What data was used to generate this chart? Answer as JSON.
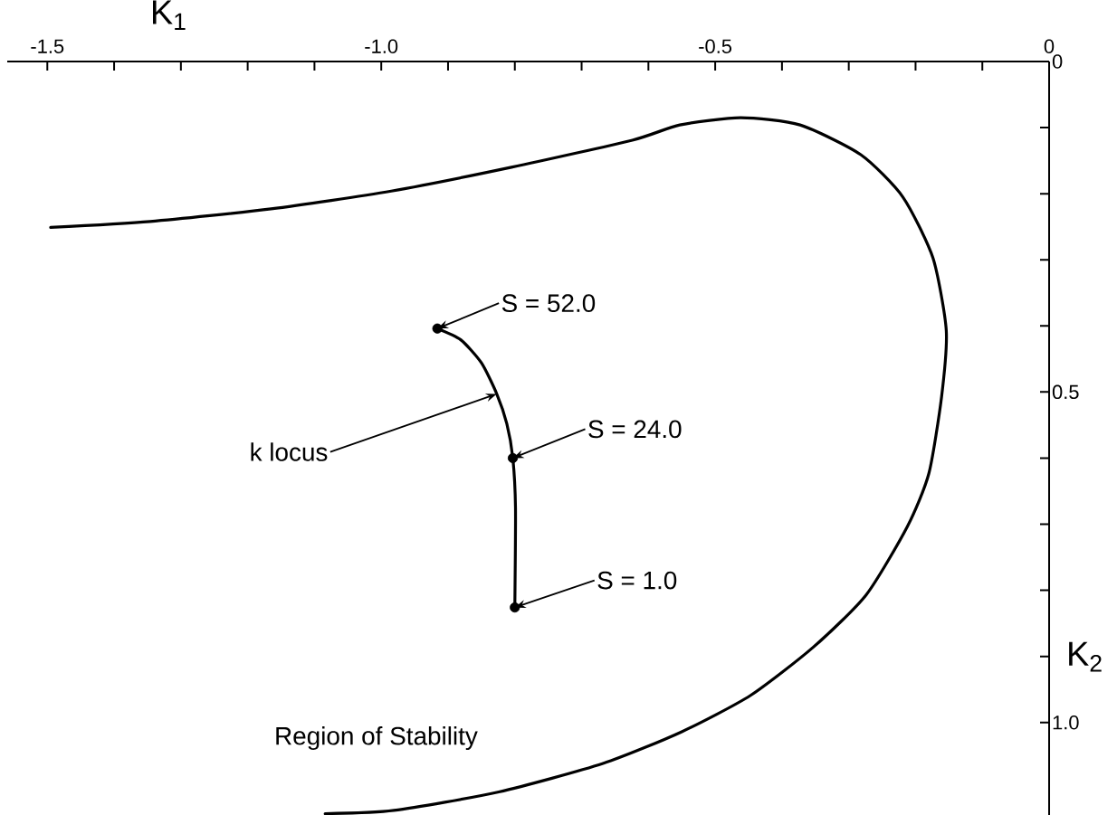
{
  "chart_data": {
    "type": "line",
    "xlabel": "K$_{1}$",
    "ylabel": "K$_{2}$",
    "xlim": [
      -1.56,
      0
    ],
    "ylim": [
      1.14,
      0
    ],
    "xticks": [
      {
        "value": -1.5,
        "label": "-1.5"
      },
      {
        "value": -1.4,
        "label": null
      },
      {
        "value": -1.3,
        "label": null
      },
      {
        "value": -1.2,
        "label": null
      },
      {
        "value": -1.1,
        "label": null
      },
      {
        "value": -1.0,
        "label": "-1.0"
      },
      {
        "value": -0.9,
        "label": null
      },
      {
        "value": -0.8,
        "label": null
      },
      {
        "value": -0.7,
        "label": null
      },
      {
        "value": -0.6,
        "label": null
      },
      {
        "value": -0.5,
        "label": "-0.5"
      },
      {
        "value": -0.4,
        "label": null
      },
      {
        "value": -0.3,
        "label": null
      },
      {
        "value": -0.2,
        "label": null
      },
      {
        "value": -0.1,
        "label": null
      },
      {
        "value": 0,
        "label": "0"
      }
    ],
    "yticks": [
      {
        "value": 0,
        "label": "0"
      },
      {
        "value": 0.1,
        "label": null
      },
      {
        "value": 0.2,
        "label": null
      },
      {
        "value": 0.3,
        "label": null
      },
      {
        "value": 0.4,
        "label": null
      },
      {
        "value": 0.5,
        "label": "0.5"
      },
      {
        "value": 0.6,
        "label": null
      },
      {
        "value": 0.7,
        "label": null
      },
      {
        "value": 0.8,
        "label": null
      },
      {
        "value": 0.9,
        "label": null
      },
      {
        "value": 1.0,
        "label": "1.0"
      }
    ],
    "series": [
      {
        "color": "#000000",
        "x": [
          -1.495,
          -1.346,
          -1.165,
          -0.985,
          -0.805,
          -0.624,
          -0.553,
          -0.462,
          -0.373,
          -0.282,
          -0.219,
          -0.174,
          -0.154,
          -0.161,
          -0.18,
          -0.212,
          -0.274,
          -0.353,
          -0.447,
          -0.55,
          -0.668,
          -0.824,
          -0.981,
          -1.084
        ],
        "values": [
          0.251,
          0.242,
          0.223,
          0.196,
          0.16,
          0.119,
          0.096,
          0.085,
          0.096,
          0.141,
          0.205,
          0.297,
          0.407,
          0.507,
          0.623,
          0.703,
          0.807,
          0.886,
          0.959,
          1.014,
          1.062,
          1.105,
          1.133,
          1.138
        ]
      },
      {
        "color": "#000000",
        "x": [
          -0.916,
          -0.881,
          -0.85,
          -0.827,
          -0.812,
          -0.803,
          -0.799,
          -0.8
        ],
        "values": [
          0.404,
          0.421,
          0.456,
          0.503,
          0.548,
          0.6,
          0.675,
          0.826
        ]
      },
      {
        "type": "scatter",
        "marker": "circle",
        "color": "#000000",
        "x": [
          -0.916,
          -0.803,
          -0.8
        ],
        "values": [
          0.404,
          0.6,
          0.826
        ]
      }
    ],
    "annotations": [
      {
        "text": "S = 52.0",
        "x": -0.916,
        "y": 0.404
      },
      {
        "text": "S = 24.0",
        "x": -0.803,
        "y": 0.6
      },
      {
        "text": "S = 1.0",
        "x": -0.8,
        "y": 0.826
      },
      {
        "text": "k locus",
        "x": -0.827,
        "y": 0.503
      },
      "Region of Stability"
    ]
  }
}
